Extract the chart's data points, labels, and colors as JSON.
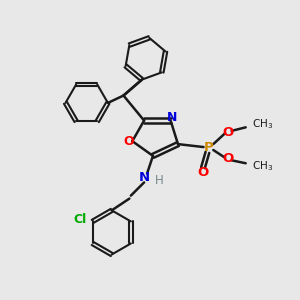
{
  "background_color": "#e8e8e8",
  "bond_color": "#1a1a1a",
  "colors": {
    "N": "#0000dd",
    "O": "#ff0000",
    "P": "#cc8800",
    "Cl": "#00aa00",
    "C": "#1a1a1a",
    "H": "#778888"
  }
}
